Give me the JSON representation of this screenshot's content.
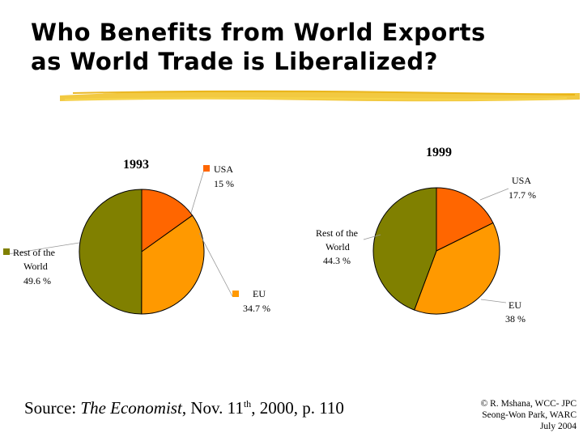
{
  "slide": {
    "title_line1": "Who Benefits from World Exports",
    "title_line2": "as World Trade is Liberalized?",
    "source_prefix": "Source: ",
    "source_italic": "The Economist",
    "source_mid": ", Nov. 11",
    "source_sup": "th",
    "source_suffix": ", 2000, p. 110",
    "credit_line1": "© R. Mshana, WCC- JPC",
    "credit_line2": "Seong-Won Park, WARC",
    "credit_line3": "July 2004"
  },
  "colors": {
    "usa": "#FF6600",
    "eu": "#FF9900",
    "rest_of_world": "#808000",
    "brush": "#F0C020"
  },
  "chart_data": [
    {
      "type": "pie",
      "title": "1993",
      "slices": [
        {
          "label": "USA",
          "value": 15,
          "value_text": "15 %"
        },
        {
          "label": "EU",
          "value": 34.7,
          "value_text": "34.7 %"
        },
        {
          "label": "Rest of the World",
          "value": 49.6,
          "value_text": "49.6 %"
        }
      ],
      "legend": "markers"
    },
    {
      "type": "pie",
      "title": "1999",
      "slices": [
        {
          "label": "USA",
          "value": 17.7,
          "value_text": "17.7 %"
        },
        {
          "label": "EU",
          "value": 38,
          "value_text": "38 %"
        },
        {
          "label": "Rest of the World",
          "value": 44.3,
          "value_text": "44.3 %"
        }
      ],
      "legend": "none"
    }
  ]
}
